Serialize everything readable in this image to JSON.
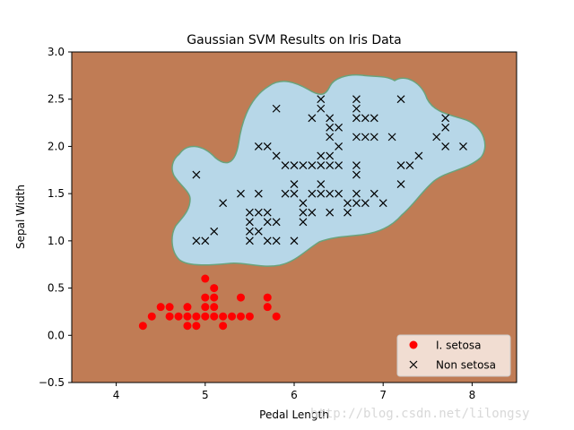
{
  "chart_data": {
    "type": "scatter",
    "title": "Gaussian SVM Results on Iris Data",
    "xlabel": "Pedal Length",
    "ylabel": "Sepal Width",
    "xlim": [
      3.5,
      8.5
    ],
    "ylim": [
      -0.5,
      3.0
    ],
    "x_ticks": [
      "4",
      "5",
      "6",
      "7",
      "8"
    ],
    "y_ticks": [
      "−0.5",
      "0.0",
      "0.5",
      "1.0",
      "1.5",
      "2.0",
      "2.5",
      "3.0"
    ],
    "grid": false,
    "legend_position": "lower-right",
    "colors": {
      "region_setosa": "#c07c55",
      "region_non_setosa": "#b7d7e8",
      "boundary": "#6aa37c",
      "setosa_marker": "#ff0000",
      "non_setosa_marker": "#000000"
    },
    "series": [
      {
        "name": "I. setosa",
        "marker": "circle",
        "points": [
          [
            4.3,
            0.1
          ],
          [
            4.4,
            0.2
          ],
          [
            4.5,
            0.3
          ],
          [
            4.6,
            0.2
          ],
          [
            4.6,
            0.3
          ],
          [
            4.7,
            0.2
          ],
          [
            4.8,
            0.1
          ],
          [
            4.8,
            0.2
          ],
          [
            4.8,
            0.3
          ],
          [
            4.9,
            0.1
          ],
          [
            4.9,
            0.2
          ],
          [
            5.0,
            0.2
          ],
          [
            5.0,
            0.3
          ],
          [
            5.0,
            0.4
          ],
          [
            5.0,
            0.6
          ],
          [
            5.1,
            0.2
          ],
          [
            5.1,
            0.3
          ],
          [
            5.1,
            0.4
          ],
          [
            5.1,
            0.5
          ],
          [
            5.2,
            0.1
          ],
          [
            5.2,
            0.2
          ],
          [
            5.3,
            0.2
          ],
          [
            5.4,
            0.2
          ],
          [
            5.4,
            0.4
          ],
          [
            5.5,
            0.2
          ],
          [
            5.7,
            0.3
          ],
          [
            5.7,
            0.4
          ],
          [
            5.8,
            0.2
          ]
        ]
      },
      {
        "name": "Non setosa",
        "marker": "x",
        "points": [
          [
            4.9,
            1.0
          ],
          [
            4.9,
            1.7
          ],
          [
            5.0,
            1.0
          ],
          [
            5.1,
            1.1
          ],
          [
            5.2,
            1.4
          ],
          [
            5.4,
            1.5
          ],
          [
            5.5,
            1.0
          ],
          [
            5.5,
            1.1
          ],
          [
            5.5,
            1.2
          ],
          [
            5.5,
            1.3
          ],
          [
            5.6,
            1.1
          ],
          [
            5.6,
            1.3
          ],
          [
            5.6,
            1.5
          ],
          [
            5.6,
            2.0
          ],
          [
            5.7,
            1.0
          ],
          [
            5.7,
            1.2
          ],
          [
            5.7,
            1.3
          ],
          [
            5.7,
            2.0
          ],
          [
            5.8,
            1.0
          ],
          [
            5.8,
            1.2
          ],
          [
            5.8,
            1.9
          ],
          [
            5.8,
            2.4
          ],
          [
            5.9,
            1.5
          ],
          [
            5.9,
            1.8
          ],
          [
            6.0,
            1.0
          ],
          [
            6.0,
            1.5
          ],
          [
            6.0,
            1.6
          ],
          [
            6.0,
            1.8
          ],
          [
            6.1,
            1.2
          ],
          [
            6.1,
            1.3
          ],
          [
            6.1,
            1.4
          ],
          [
            6.1,
            1.8
          ],
          [
            6.2,
            1.3
          ],
          [
            6.2,
            1.5
          ],
          [
            6.2,
            1.8
          ],
          [
            6.2,
            2.3
          ],
          [
            6.3,
            1.5
          ],
          [
            6.3,
            1.6
          ],
          [
            6.3,
            1.8
          ],
          [
            6.3,
            1.9
          ],
          [
            6.3,
            2.4
          ],
          [
            6.3,
            2.5
          ],
          [
            6.4,
            1.3
          ],
          [
            6.4,
            1.5
          ],
          [
            6.4,
            1.8
          ],
          [
            6.4,
            1.9
          ],
          [
            6.4,
            2.1
          ],
          [
            6.4,
            2.2
          ],
          [
            6.4,
            2.3
          ],
          [
            6.5,
            1.5
          ],
          [
            6.5,
            1.8
          ],
          [
            6.5,
            2.0
          ],
          [
            6.5,
            2.2
          ],
          [
            6.6,
            1.3
          ],
          [
            6.6,
            1.4
          ],
          [
            6.7,
            1.4
          ],
          [
            6.7,
            1.5
          ],
          [
            6.7,
            1.7
          ],
          [
            6.7,
            1.8
          ],
          [
            6.7,
            2.1
          ],
          [
            6.7,
            2.3
          ],
          [
            6.7,
            2.4
          ],
          [
            6.7,
            2.5
          ],
          [
            6.8,
            1.4
          ],
          [
            6.8,
            2.1
          ],
          [
            6.8,
            2.3
          ],
          [
            6.9,
            1.5
          ],
          [
            6.9,
            2.1
          ],
          [
            6.9,
            2.3
          ],
          [
            7.0,
            1.4
          ],
          [
            7.1,
            2.1
          ],
          [
            7.2,
            1.6
          ],
          [
            7.2,
            1.8
          ],
          [
            7.2,
            2.5
          ],
          [
            7.3,
            1.8
          ],
          [
            7.4,
            1.9
          ],
          [
            7.6,
            2.1
          ],
          [
            7.7,
            2.0
          ],
          [
            7.7,
            2.2
          ],
          [
            7.7,
            2.3
          ],
          [
            7.9,
            2.0
          ]
        ]
      }
    ]
  },
  "watermark": "http://blog.csdn.net/lilongsy"
}
